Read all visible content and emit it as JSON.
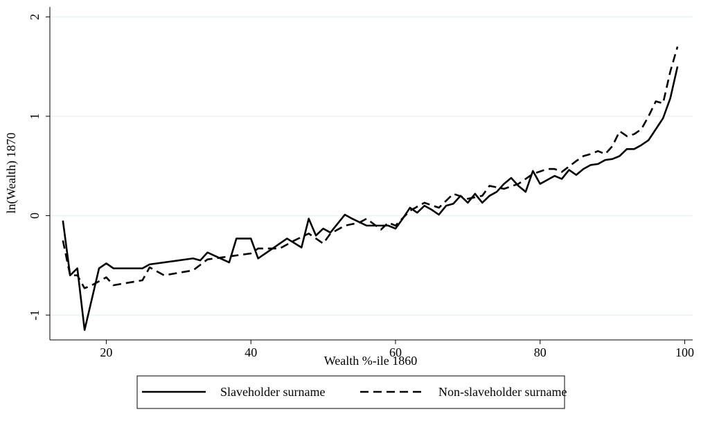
{
  "chart_data": {
    "type": "line",
    "xlabel": "Wealth %-ile 1860",
    "ylabel": "ln(Wealth) 1870",
    "xlim": [
      12.2,
      101.1
    ],
    "xticks": [
      20,
      40,
      60,
      80,
      100
    ],
    "ylim": [
      -1.25,
      2.1
    ],
    "yticks": [
      -1,
      0,
      1,
      2
    ],
    "grid": true,
    "legend": "bottom",
    "series": [
      {
        "name": "Slaveholder surname",
        "color": "#000000",
        "dash": "solid",
        "x": [
          14,
          15,
          16,
          17,
          19,
          20,
          21,
          25,
          26,
          32,
          33,
          34,
          37,
          38,
          40,
          41,
          43,
          45,
          47,
          48,
          49,
          50,
          51,
          53,
          54,
          56,
          58,
          59,
          60,
          61,
          62,
          63,
          64,
          65,
          66,
          67,
          68,
          69,
          70,
          71,
          72,
          73,
          74,
          75,
          76,
          77,
          78,
          79,
          80,
          81,
          82,
          83,
          84,
          85,
          86,
          87,
          88,
          89,
          90,
          91,
          92,
          93,
          94,
          95,
          96,
          97,
          98,
          99
        ],
        "values": [
          -0.05,
          -0.6,
          -0.53,
          -1.15,
          -0.53,
          -0.48,
          -0.53,
          -0.53,
          -0.49,
          -0.43,
          -0.45,
          -0.37,
          -0.47,
          -0.23,
          -0.23,
          -0.43,
          -0.33,
          -0.23,
          -0.32,
          -0.03,
          -0.2,
          -0.13,
          -0.17,
          0.01,
          -0.03,
          -0.1,
          -0.1,
          -0.1,
          -0.13,
          -0.03,
          0.08,
          0.03,
          0.1,
          0.06,
          0.01,
          0.1,
          0.12,
          0.2,
          0.13,
          0.22,
          0.13,
          0.2,
          0.24,
          0.32,
          0.38,
          0.3,
          0.24,
          0.45,
          0.32,
          0.36,
          0.4,
          0.37,
          0.46,
          0.41,
          0.47,
          0.51,
          0.52,
          0.56,
          0.57,
          0.6,
          0.67,
          0.67,
          0.71,
          0.76,
          0.87,
          0.98,
          1.18,
          1.5
        ]
      },
      {
        "name": "Non-slaveholder surname",
        "color": "#000000",
        "dash": "dashed",
        "x": [
          14,
          15,
          16,
          17,
          18,
          20,
          21,
          25,
          26,
          28,
          32,
          34,
          36,
          40,
          41,
          44,
          46,
          48,
          50,
          51,
          53,
          55,
          56,
          58,
          59,
          60,
          62,
          64,
          66,
          68,
          70,
          72,
          73,
          75,
          77,
          79,
          81,
          82,
          83,
          85,
          86,
          87,
          88,
          89,
          90,
          91,
          92,
          93,
          94,
          95,
          96,
          97,
          98,
          99
        ],
        "values": [
          -0.25,
          -0.6,
          -0.6,
          -0.73,
          -0.7,
          -0.62,
          -0.7,
          -0.65,
          -0.52,
          -0.6,
          -0.55,
          -0.44,
          -0.42,
          -0.38,
          -0.33,
          -0.33,
          -0.25,
          -0.18,
          -0.28,
          -0.18,
          -0.1,
          -0.07,
          -0.03,
          -0.14,
          -0.07,
          -0.1,
          0.05,
          0.13,
          0.08,
          0.22,
          0.17,
          0.2,
          0.3,
          0.27,
          0.32,
          0.42,
          0.47,
          0.47,
          0.44,
          0.55,
          0.6,
          0.62,
          0.65,
          0.62,
          0.7,
          0.85,
          0.8,
          0.82,
          0.87,
          1.0,
          1.15,
          1.13,
          1.45,
          1.7
        ]
      }
    ]
  }
}
